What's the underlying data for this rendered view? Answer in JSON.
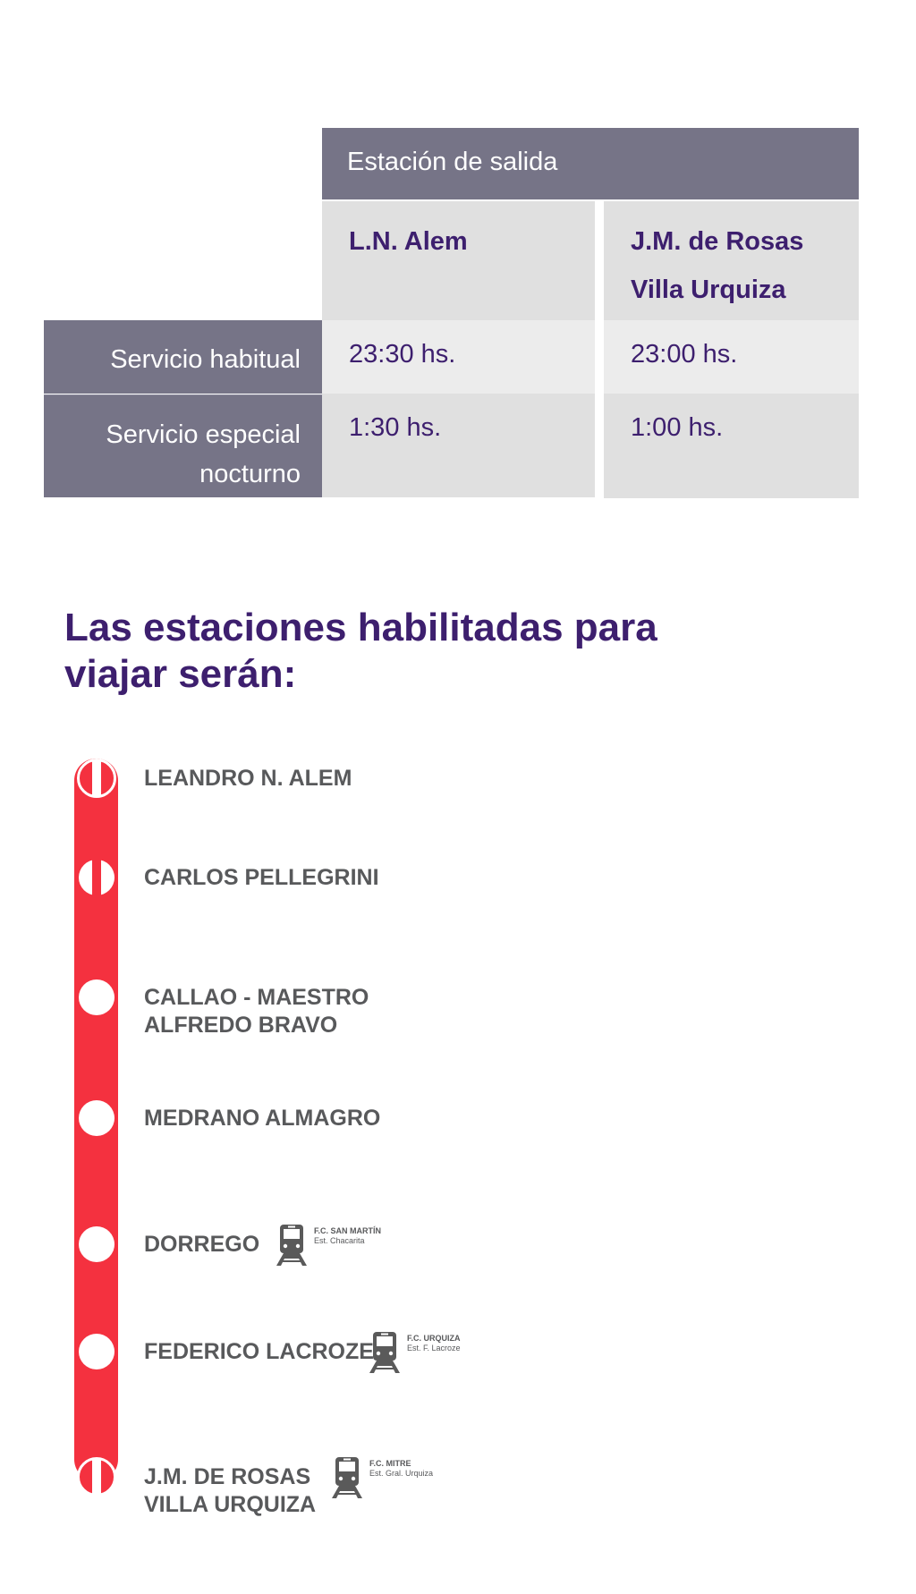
{
  "table": {
    "header": "Estación de salida",
    "columns": [
      [
        "L.N. Alem"
      ],
      [
        "J.M. de Rosas",
        "Villa Urquiza"
      ]
    ],
    "rows": [
      {
        "label": [
          "Servicio habitual"
        ],
        "values": [
          "23:30 hs.",
          "23:00 hs."
        ]
      },
      {
        "label": [
          "Servicio especial",
          "nocturno"
        ],
        "values": [
          "1:30 hs.",
          "1:00 hs."
        ]
      }
    ]
  },
  "title": [
    "Las estaciones habilitadas para",
    "viajar serán:"
  ],
  "line_color": "#f4313f",
  "stations": [
    {
      "name": [
        "LEANDRO N. ALEM"
      ],
      "marker": "terminal-transfer"
    },
    {
      "name": [
        "CARLOS PELLEGRINI"
      ],
      "marker": "transfer"
    },
    {
      "name": [
        "CALLAO - MAESTRO",
        "ALFREDO BRAVO"
      ],
      "marker": "station"
    },
    {
      "name": [
        "MEDRANO ALMAGRO"
      ],
      "marker": "station"
    },
    {
      "name": [
        "DORREGO"
      ],
      "marker": "station",
      "connection": {
        "line": "F.C. SAN MARTÍN",
        "station": "Est. Chacarita"
      }
    },
    {
      "name": [
        "FEDERICO LACROZE"
      ],
      "marker": "station",
      "connection": {
        "line": "F.C. URQUIZA",
        "station": "Est. F. Lacroze"
      }
    },
    {
      "name": [
        "J.M. DE ROSAS",
        "VILLA URQUIZA"
      ],
      "marker": "terminal-transfer",
      "connection": {
        "line": "F.C. MITRE",
        "station": "Est. Gral. Urquiza"
      }
    }
  ]
}
